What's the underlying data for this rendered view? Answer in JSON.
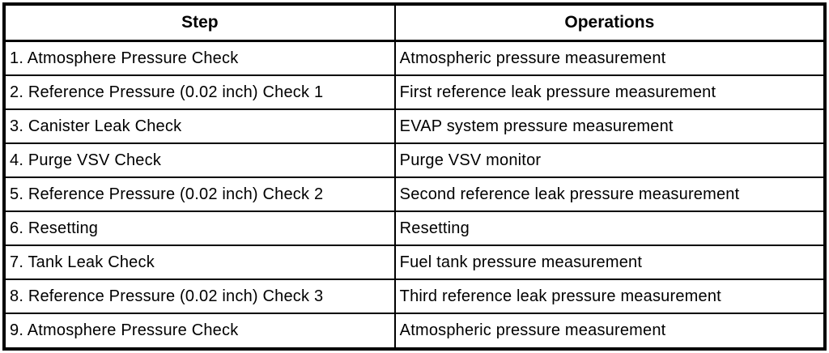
{
  "colors": {
    "border": "#000000",
    "background": "#ffffff",
    "text": "#000000"
  },
  "table": {
    "columns": {
      "step": "Step",
      "operations": "Operations"
    },
    "rows": [
      {
        "step": "1. Atmosphere Pressure Check",
        "operation": "Atmospheric pressure measurement"
      },
      {
        "step": "2. Reference Pressure (0.02 inch) Check 1",
        "operation": "First reference leak pressure measurement"
      },
      {
        "step": "3. Canister Leak Check",
        "operation": "EVAP system pressure measurement"
      },
      {
        "step": "4. Purge VSV Check",
        "operation": "Purge VSV monitor"
      },
      {
        "step": "5. Reference Pressure (0.02 inch) Check 2",
        "operation": "Second reference leak pressure measurement"
      },
      {
        "step": "6. Resetting",
        "operation": "Resetting"
      },
      {
        "step": "7. Tank Leak Check",
        "operation": "Fuel tank pressure measurement"
      },
      {
        "step": "8. Reference Pressure (0.02 inch) Check 3",
        "operation": "Third reference leak pressure measurement"
      },
      {
        "step": "9. Atmosphere Pressure Check",
        "operation": "Atmospheric pressure measurement"
      }
    ]
  }
}
